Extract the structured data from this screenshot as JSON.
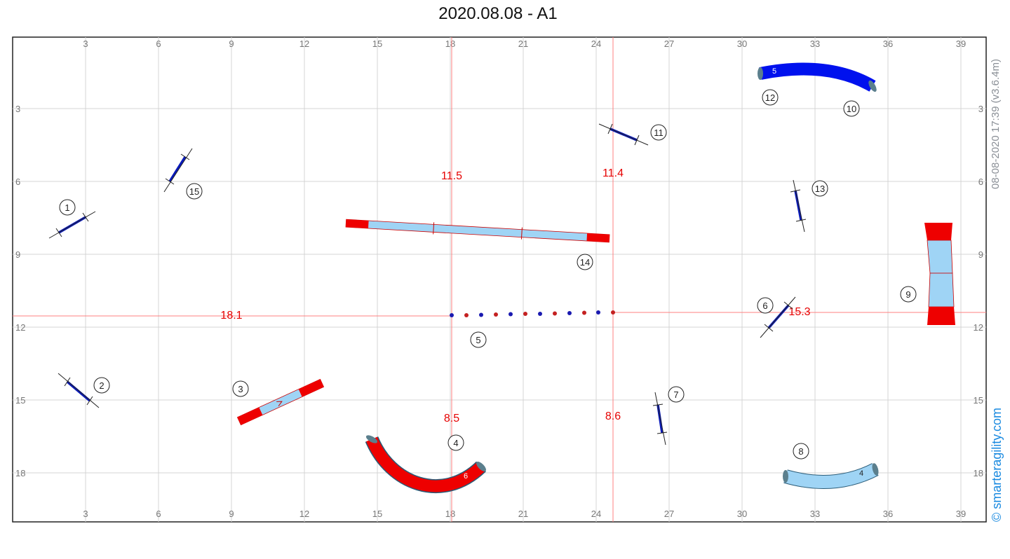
{
  "title": "2020.08.08 - A1",
  "side_version": "08-08-2020 17:39  (v3.6.4m)",
  "side_brand": "© smarteragility.com",
  "grid": {
    "x_ticks": [
      "3",
      "6",
      "9",
      "12",
      "15",
      "18",
      "21",
      "24",
      "27",
      "30",
      "33",
      "36",
      "39"
    ],
    "y_ticks": [
      "3",
      "6",
      "9",
      "12",
      "15",
      "18"
    ]
  },
  "distances": [
    "11.5",
    "11.4",
    "18.1",
    "15.3",
    "8.5",
    "8.6"
  ],
  "obstacle_numbers": [
    "1",
    "2",
    "3",
    "4",
    "5",
    "6",
    "7",
    "8",
    "9",
    "10",
    "11",
    "12",
    "13",
    "14",
    "15"
  ],
  "tunnel_labels": [
    "5",
    "6",
    "4"
  ],
  "colors": {
    "jump_bar": "#0a1ab8",
    "tunnel_blue": "#0011ee",
    "tunnel_red": "#ee0000",
    "tunnel_light": "#9fd4f5",
    "contact_red": "#ee0000",
    "measure_line": "#ff7f7f",
    "grid": "#d4d4d4"
  }
}
